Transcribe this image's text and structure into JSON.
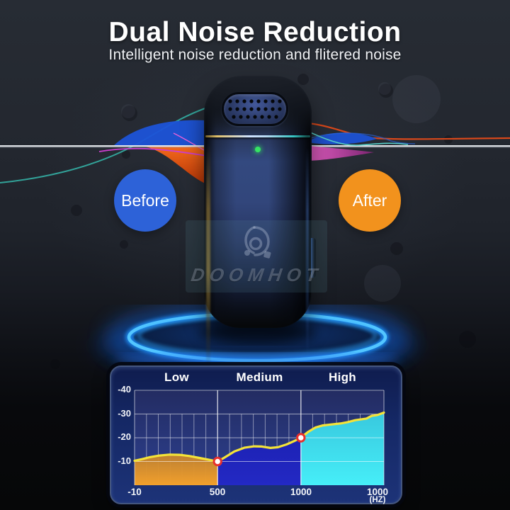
{
  "header": {
    "title": "Dual Noise Reduction",
    "subtitle": "Intelligent noise reduction and flitered noise"
  },
  "comparison": {
    "before_label": "Before",
    "after_label": "After"
  },
  "watermark": {
    "brand": "DOOMHOT"
  },
  "device": {
    "type": "wireless lavalier microphone",
    "status_led": "green"
  },
  "colors": {
    "before_circle": "#2d62d8",
    "after_circle": "#f2921d",
    "led": "#35e463",
    "platform_glow": "#2b9bff",
    "title_text": "#ffffff"
  },
  "chart_data": {
    "type": "area",
    "sections": [
      "Low",
      "Medium",
      "High"
    ],
    "y_ticks": [
      "-40",
      "-30",
      "-20",
      "-10"
    ],
    "y_tick_values": [
      -40,
      -30,
      -20,
      -10
    ],
    "ylim": [
      -40,
      0
    ],
    "x_ticks": [
      "-10",
      "500",
      "1000",
      "1000"
    ],
    "x_tick_positions": [
      0,
      0.333,
      0.667,
      1
    ],
    "x_unit": "(HZ)",
    "section_bounds": [
      0,
      0.333,
      0.667,
      1
    ],
    "curve_points": [
      [
        0,
        -10.3
      ],
      [
        0.03,
        -11.0
      ],
      [
        0.06,
        -11.8
      ],
      [
        0.1,
        -12.5
      ],
      [
        0.14,
        -12.9
      ],
      [
        0.18,
        -12.8
      ],
      [
        0.22,
        -12.3
      ],
      [
        0.26,
        -11.5
      ],
      [
        0.3,
        -10.7
      ],
      [
        0.333,
        -10.0
      ],
      [
        0.36,
        -11.6
      ],
      [
        0.4,
        -14.2
      ],
      [
        0.44,
        -15.8
      ],
      [
        0.48,
        -16.4
      ],
      [
        0.51,
        -16.3
      ],
      [
        0.545,
        -15.7
      ],
      [
        0.575,
        -16.0
      ],
      [
        0.61,
        -17.2
      ],
      [
        0.64,
        -18.6
      ],
      [
        0.667,
        -20.0
      ],
      [
        0.695,
        -22.4
      ],
      [
        0.725,
        -24.3
      ],
      [
        0.755,
        -25.2
      ],
      [
        0.79,
        -25.6
      ],
      [
        0.825,
        -26.0
      ],
      [
        0.855,
        -26.6
      ],
      [
        0.885,
        -27.4
      ],
      [
        0.91,
        -27.8
      ],
      [
        0.93,
        -28.1
      ],
      [
        0.95,
        -29.2
      ],
      [
        0.975,
        -29.6
      ],
      [
        1,
        -30.6
      ]
    ],
    "markers": [
      [
        0.333,
        -10
      ],
      [
        0.667,
        -20
      ]
    ],
    "line_color": "#f4e338",
    "marker_stroke": "#e8302c",
    "section_fill_gradients": [
      [
        "rgba(140,95,45,0.85)",
        "#f2a02c"
      ],
      [
        "#191dac",
        "#2329c4"
      ],
      [
        "#38c8de",
        "#46eef8"
      ]
    ],
    "grid": true,
    "legend": null
  }
}
